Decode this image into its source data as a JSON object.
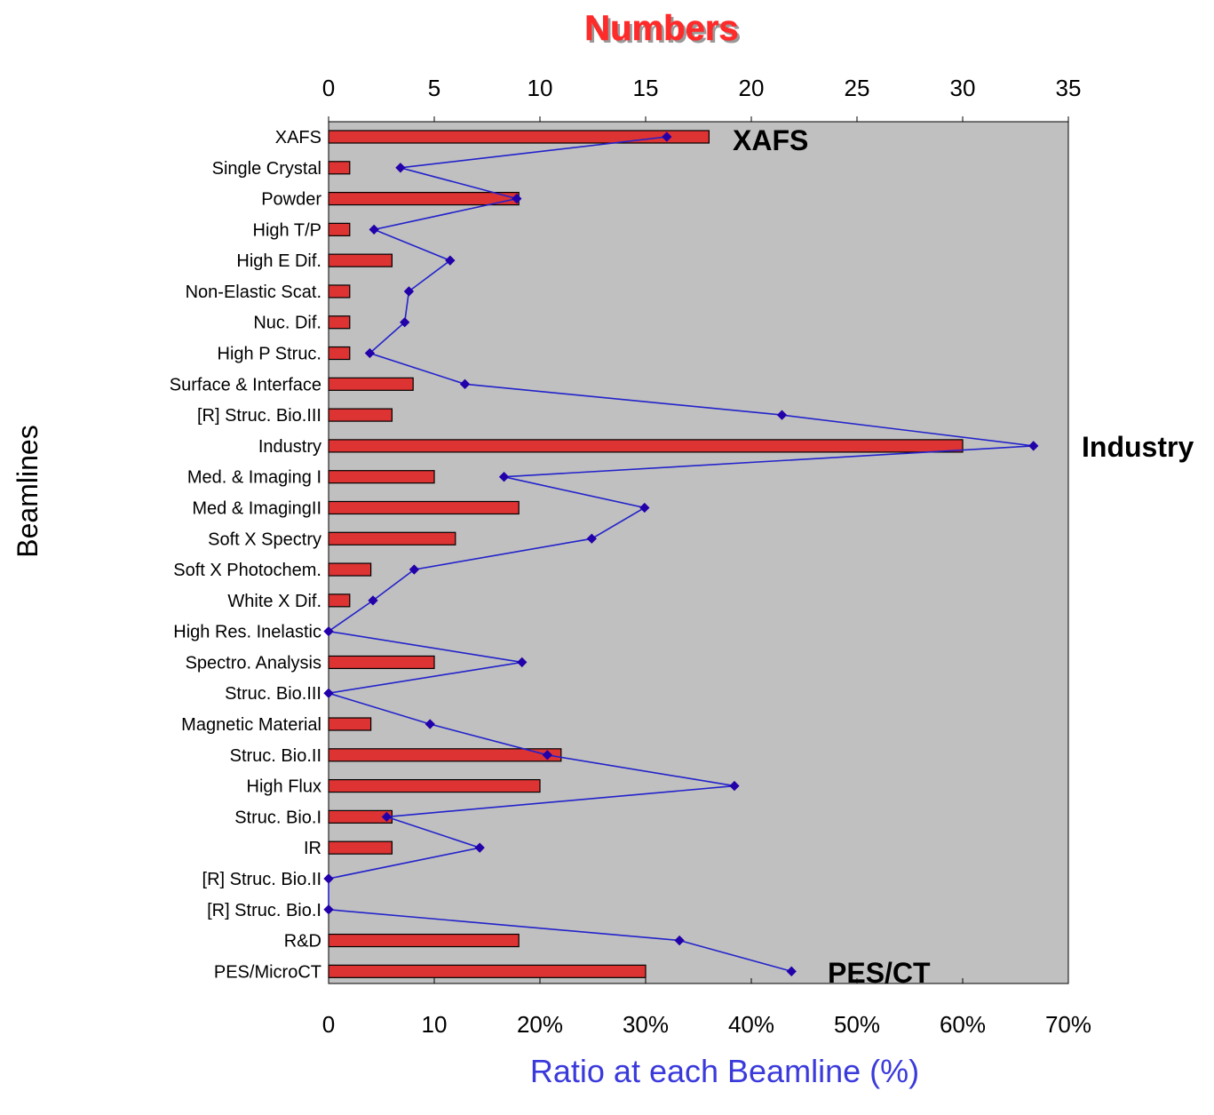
{
  "chart_data": {
    "type": "bar",
    "title": "Numbers",
    "xlabel": "Ratio at each Beamline (%)",
    "ylabel": "Beamlines",
    "top_axis": {
      "label": "Numbers",
      "range": [
        0,
        35
      ],
      "ticks": [
        "0",
        "5",
        "10",
        "15",
        "20",
        "25",
        "30",
        "35"
      ]
    },
    "bottom_axis": {
      "label": "Ratio at each Beamline (%)",
      "range": [
        0,
        70
      ],
      "ticks": [
        "0",
        "10",
        "20%",
        "30%",
        "40%",
        "50%",
        "60%",
        "70%"
      ]
    },
    "grid": false,
    "colors": {
      "bar": "#dd3333",
      "line": "#2222cc",
      "marker": "#2200aa",
      "plot_bg": "#c0c0c0",
      "title": "#ff2a2a",
      "xlabel": "#3a3adc"
    },
    "categories": [
      "XAFS",
      "Single Crystal",
      "Powder",
      "High T/P",
      "High E Dif.",
      "Non-Elastic Scat.",
      "Nuc. Dif.",
      "High P Struc.",
      "Surface & Interface",
      "[R] Struc. Bio.III",
      "Industry",
      "Med. & Imaging I",
      "Med & ImagingII",
      "Soft X Spectry",
      "Soft X Photochem.",
      "White X Dif.",
      "High Res. Inelastic",
      "Spectro. Analysis",
      "Struc. Bio.III",
      "Magnetic Material",
      "Struc. Bio.II",
      "High Flux",
      "Struc. Bio.I",
      "IR",
      "[R] Struc. Bio.II",
      "[R] Struc. Bio.I",
      "R&D",
      "PES/MicroCT"
    ],
    "series": [
      {
        "type": "bar",
        "axis": "top",
        "values": [
          18,
          1,
          9,
          1,
          3,
          1,
          1,
          1,
          4,
          3,
          30,
          5,
          9,
          6,
          2,
          1,
          0,
          5,
          0,
          2,
          11,
          10,
          3,
          3,
          0,
          0,
          9,
          15
        ]
      },
      {
        "type": "line",
        "axis": "bottom",
        "values": [
          32,
          6.8,
          17.8,
          4.3,
          11.5,
          7.6,
          7.2,
          3.9,
          12.9,
          42.9,
          66.7,
          16.6,
          29.9,
          24.9,
          8.1,
          4.2,
          0,
          18.3,
          0,
          9.6,
          20.7,
          38.4,
          5.5,
          14.3,
          0,
          0,
          33.2,
          43.8
        ]
      }
    ],
    "annotations": [
      "XAFS",
      "Industry",
      "PES/CT"
    ]
  }
}
